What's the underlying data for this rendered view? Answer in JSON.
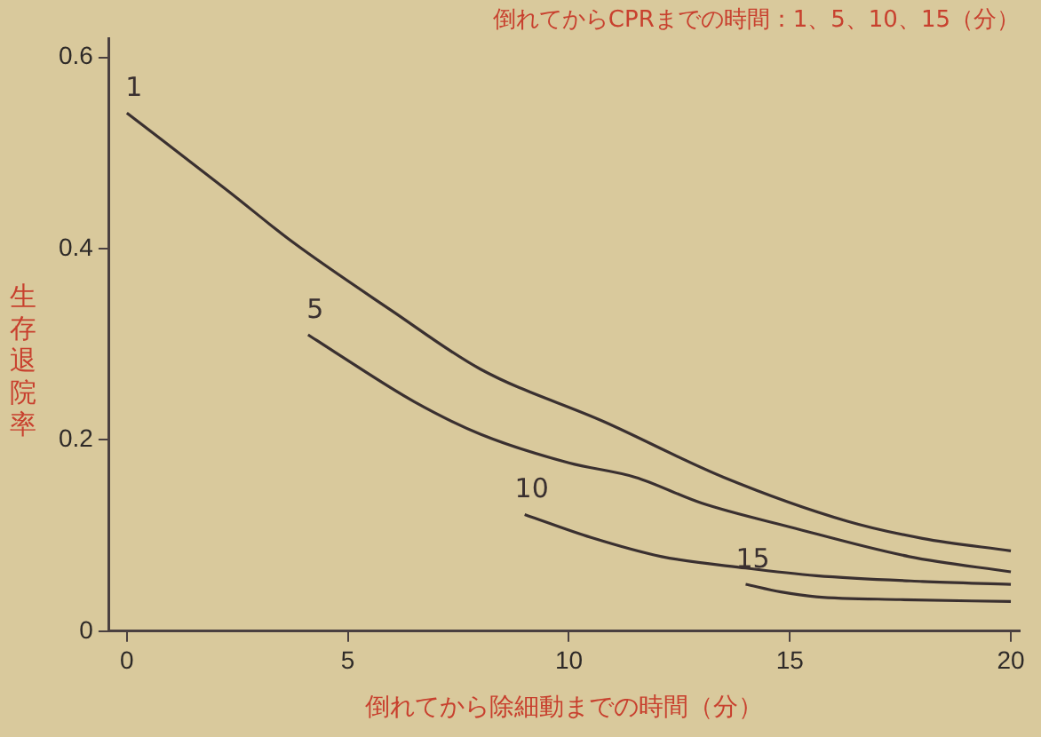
{
  "chart_data": {
    "type": "line",
    "title": "倒れてからCPRまでの時間：1、5、10、15（分）",
    "xlabel": "倒れてから除細動までの時間（分）",
    "ylabel": "生存退院率",
    "xlim": [
      -0.4,
      20.2
    ],
    "xticks": [
      0,
      5,
      10,
      15,
      20
    ],
    "ylim": [
      0,
      0.62
    ],
    "yticks": [
      0,
      0.2,
      0.4,
      0.6
    ],
    "grid": false,
    "legend": false,
    "marker": "none",
    "line_style": "solid",
    "series": [
      {
        "name": "1",
        "color": "#3a3030",
        "x": [
          0,
          2.3,
          3.75,
          6,
          8,
          10.8,
          13.5,
          16.3,
          18,
          20
        ],
        "values": [
          0.542,
          0.46,
          0.407,
          0.335,
          0.274,
          0.219,
          0.161,
          0.115,
          0.097,
          0.084
        ]
      },
      {
        "name": "5",
        "color": "#3a3030",
        "x": [
          4.1,
          4.7,
          6.5,
          8,
          10,
          11.5,
          13,
          15,
          17.7,
          20
        ],
        "values": [
          0.31,
          0.292,
          0.24,
          0.206,
          0.176,
          0.161,
          0.134,
          0.109,
          0.078,
          0.062
        ]
      },
      {
        "name": "10",
        "color": "#3a3030",
        "x": [
          9,
          10.5,
          12.1,
          14,
          15.6,
          18,
          20
        ],
        "values": [
          0.122,
          0.098,
          0.078,
          0.066,
          0.058,
          0.052,
          0.049
        ]
      },
      {
        "name": "15",
        "color": "#3a3030",
        "x": [
          14,
          14.8,
          15.6,
          17.5,
          20
        ],
        "values": [
          0.049,
          0.041,
          0.036,
          0.033,
          0.031
        ]
      }
    ]
  }
}
